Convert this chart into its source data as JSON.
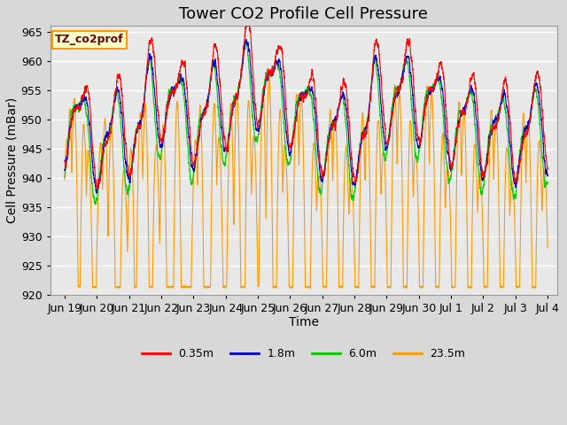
{
  "title": "Tower CO2 Profile Cell Pressure",
  "xlabel": "Time",
  "ylabel": "Cell Pressure (mBar)",
  "ylim": [
    920,
    966
  ],
  "yticks": [
    920,
    925,
    930,
    935,
    940,
    945,
    950,
    955,
    960,
    965
  ],
  "bg_color": "#d8d8d8",
  "plot_bg": "#e8e8e8",
  "grid_color": "#ffffff",
  "line_colors": [
    "#ff0000",
    "#0000cc",
    "#00cc00",
    "#ff9900"
  ],
  "line_labels": [
    "0.35m",
    "1.8m",
    "6.0m",
    "23.5m"
  ],
  "legend_label": "TZ_co2prof",
  "legend_bg": "#ffffcc",
  "legend_edge": "#ff9900",
  "x_ticklabels": [
    "Jun 19",
    "Jun 20",
    "Jun 21",
    "Jun 22",
    "Jun 23",
    "Jun 24",
    "Jun 25",
    "Jun 26",
    "Jun 27",
    "Jun 28",
    "Jun 29",
    "Jun 30",
    "Jul 1",
    "Jul 2",
    "Jul 3",
    "Jul 4"
  ],
  "x_tickvals": [
    19,
    20,
    21,
    22,
    23,
    24,
    25,
    26,
    27,
    28,
    29,
    30,
    31,
    32,
    33,
    34
  ],
  "font_size_title": 13,
  "font_size_axis": 10,
  "font_size_tick": 9
}
